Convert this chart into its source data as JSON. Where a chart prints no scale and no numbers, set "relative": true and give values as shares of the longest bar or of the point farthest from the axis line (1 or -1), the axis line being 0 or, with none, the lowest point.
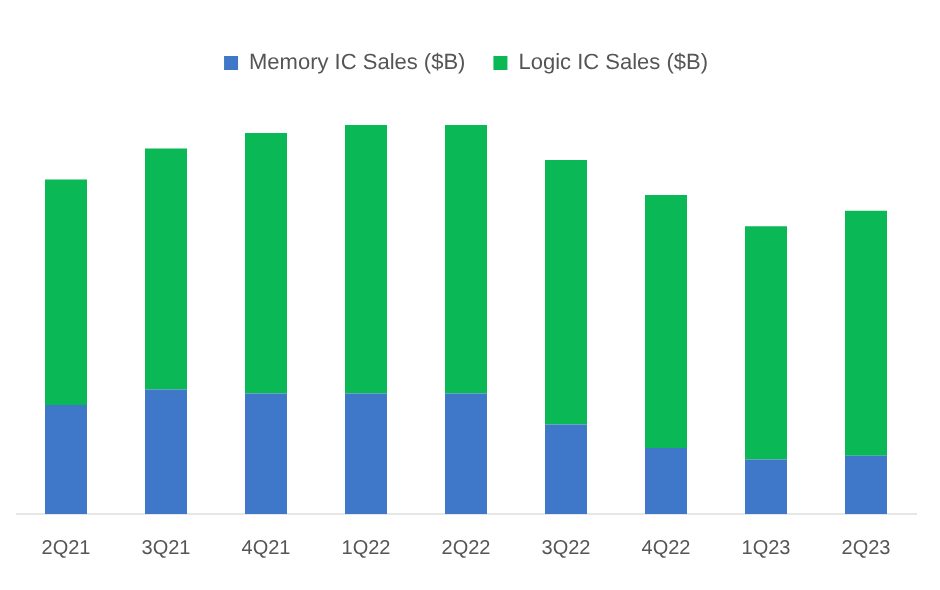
{
  "chart_data": {
    "type": "bar",
    "stacked": true,
    "relative": true,
    "legend": "top",
    "categories": [
      "2Q21",
      "3Q21",
      "4Q21",
      "1Q22",
      "2Q22",
      "3Q22",
      "4Q22",
      "1Q23",
      "2Q23"
    ],
    "series": [
      {
        "name": "Memory IC Sales ($B)",
        "color": "#3f78c8",
        "values": [
          0.28,
          0.32,
          0.31,
          0.31,
          0.31,
          0.23,
          0.17,
          0.14,
          0.15
        ]
      },
      {
        "name": "Logic IC Sales ($B)",
        "color": "#0ab856",
        "values": [
          0.58,
          0.62,
          0.67,
          0.69,
          0.69,
          0.68,
          0.65,
          0.6,
          0.63
        ]
      }
    ]
  }
}
